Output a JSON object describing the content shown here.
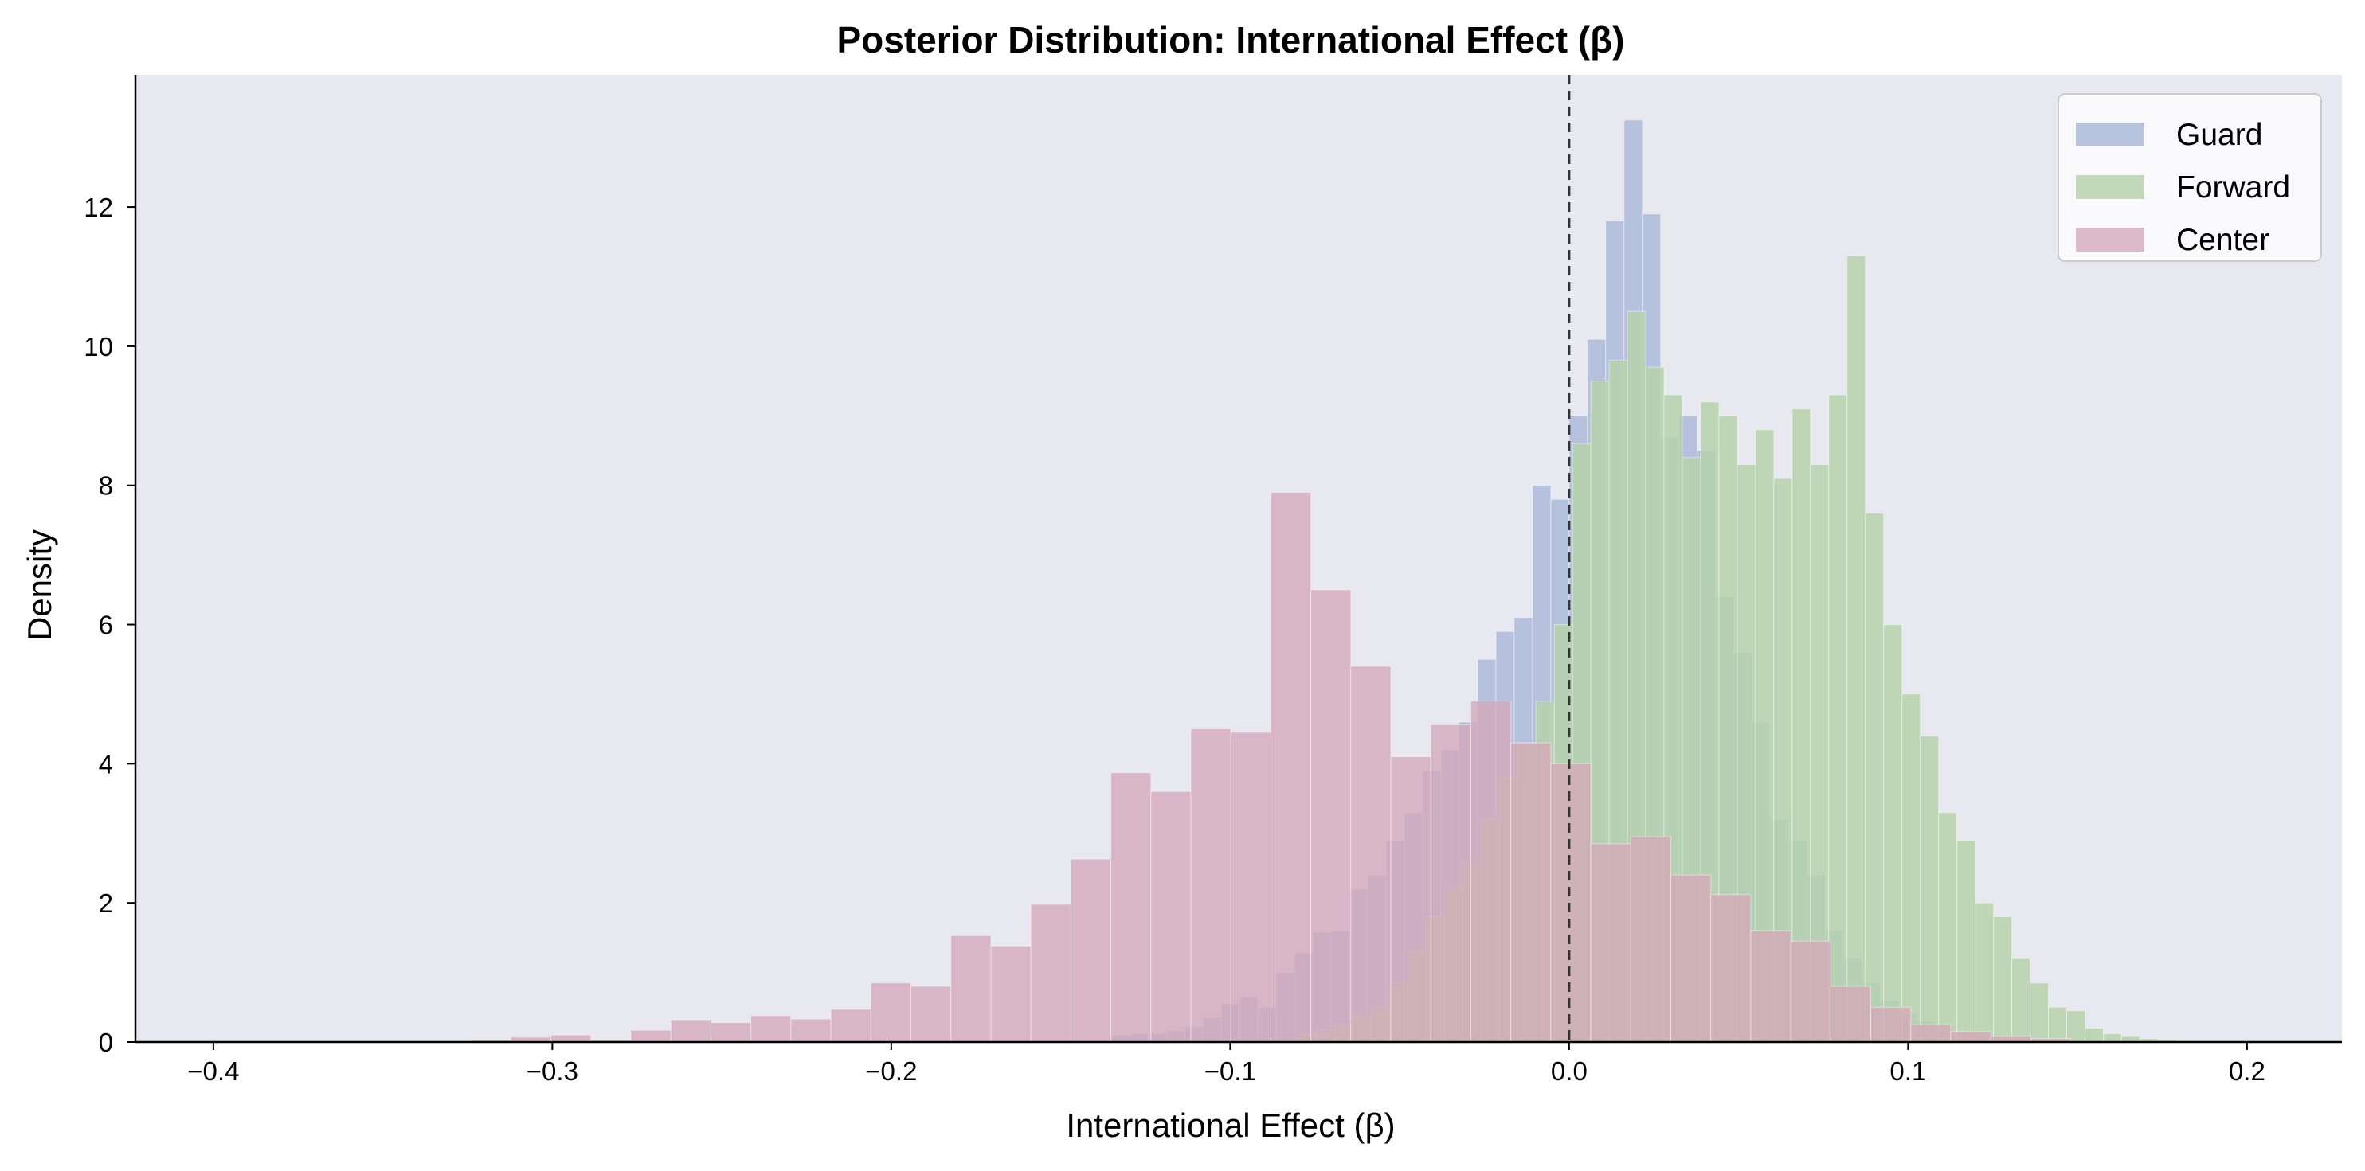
{
  "chart_data": {
    "type": "histogram",
    "title": "Posterior Distribution: International Effect (β)",
    "xlabel": "International Effect (β)",
    "ylabel": "Density",
    "xlim": [
      -0.423,
      0.228
    ],
    "ylim": [
      0,
      13.9
    ],
    "xticks": [
      -0.4,
      -0.3,
      -0.2,
      -0.1,
      0.0,
      0.1,
      0.2
    ],
    "xtick_labels": [
      "−0.4",
      "−0.3",
      "−0.2",
      "−0.1",
      "0.0",
      "0.1",
      "0.2"
    ],
    "yticks": [
      0,
      2,
      4,
      6,
      8,
      10,
      12
    ],
    "ytick_labels": [
      "0",
      "2",
      "4",
      "6",
      "8",
      "10",
      "12"
    ],
    "grid": false,
    "background_color": "#e8e8f0",
    "reference_line": {
      "x": 0.0,
      "style": "dashed",
      "color": "#333333"
    },
    "legend": {
      "position": "top-right",
      "entries": [
        "Guard",
        "Forward",
        "Center"
      ]
    },
    "series": [
      {
        "name": "Guard",
        "color": "#b0bcda",
        "opacity": 0.9,
        "bin_start": -0.135,
        "bin_width": 0.0054,
        "values": [
          0.1,
          0.12,
          0.12,
          0.16,
          0.22,
          0.35,
          0.55,
          0.65,
          0.5,
          1.0,
          1.28,
          1.58,
          1.6,
          2.2,
          2.4,
          2.9,
          3.3,
          3.9,
          4.2,
          4.6,
          5.5,
          5.9,
          6.1,
          8.0,
          7.8,
          9.0,
          10.1,
          11.8,
          13.25,
          11.9,
          8.7,
          9.0,
          8.5,
          6.4,
          5.6,
          4.6,
          3.2,
          2.9,
          2.4,
          1.6,
          1.2,
          0.85,
          0.6,
          0.4,
          0.3,
          0.2,
          0.12,
          0.08
        ]
      },
      {
        "name": "Forward",
        "color": "#b6d2ac",
        "opacity": 0.85,
        "bin_start": -0.08,
        "bin_width": 0.0054,
        "values": [
          0.1,
          0.18,
          0.25,
          0.35,
          0.5,
          0.85,
          1.3,
          1.8,
          2.2,
          2.6,
          3.2,
          3.8,
          4.3,
          4.9,
          6.0,
          8.6,
          9.5,
          9.8,
          10.5,
          9.7,
          9.3,
          8.4,
          9.2,
          9.0,
          8.3,
          8.8,
          8.1,
          9.1,
          8.3,
          9.3,
          11.3,
          7.6,
          6.0,
          5.0,
          4.4,
          3.3,
          2.9,
          2.0,
          1.8,
          1.2,
          0.85,
          0.5,
          0.45,
          0.2,
          0.12,
          0.08,
          0.05,
          0.03
        ]
      },
      {
        "name": "Center",
        "color": "#d4a8b8",
        "opacity": 0.78,
        "bin_start": -0.324,
        "bin_width": 0.0118,
        "values": [
          0.03,
          0.07,
          0.1,
          0.03,
          0.17,
          0.32,
          0.28,
          0.38,
          0.33,
          0.47,
          0.85,
          0.8,
          1.53,
          1.38,
          1.98,
          2.63,
          3.87,
          3.6,
          4.5,
          4.45,
          7.9,
          6.5,
          5.4,
          4.1,
          4.56,
          4.9,
          4.3,
          4.0,
          2.85,
          2.95,
          2.4,
          2.12,
          1.6,
          1.45,
          0.8,
          0.5,
          0.25,
          0.15,
          0.08,
          0.05
        ]
      }
    ]
  }
}
